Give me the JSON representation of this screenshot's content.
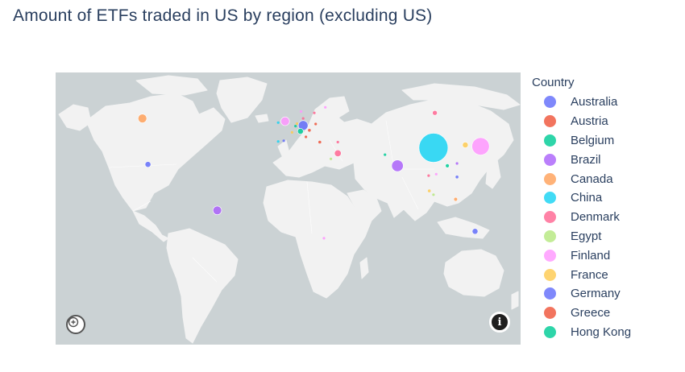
{
  "title": "Amount of ETFs traded in US by region (excluding US)",
  "legend": {
    "title": "Country",
    "items": [
      {
        "label": "Australia",
        "color": "#636efa"
      },
      {
        "label": "Austria",
        "color": "#ef553b"
      },
      {
        "label": "Belgium",
        "color": "#00cc96"
      },
      {
        "label": "Brazil",
        "color": "#ab63fa"
      },
      {
        "label": "Canada",
        "color": "#ffa15a"
      },
      {
        "label": "China",
        "color": "#19d3f3"
      },
      {
        "label": "Denmark",
        "color": "#ff6692"
      },
      {
        "label": "Egypt",
        "color": "#b6e880"
      },
      {
        "label": "Finland",
        "color": "#ff97ff"
      },
      {
        "label": "France",
        "color": "#fecb52"
      },
      {
        "label": "Germany",
        "color": "#636efa"
      },
      {
        "label": "Greece",
        "color": "#ef553b"
      },
      {
        "label": "Hong Kong",
        "color": "#00cc96"
      }
    ]
  },
  "chart_data": {
    "type": "scatter_geo",
    "projection": "natural earth",
    "legend_title": "Country",
    "points": [
      {
        "country": "Australia",
        "lon": 134,
        "lat": -25,
        "size": 6,
        "color": "#636efa"
      },
      {
        "country": "Austria",
        "lon": 14.5,
        "lat": 47.5,
        "size": 3,
        "color": "#ef553b"
      },
      {
        "country": "Belgium",
        "lon": 4.5,
        "lat": 50.5,
        "size": 2,
        "color": "#00cc96"
      },
      {
        "country": "Brazil",
        "lon": -52,
        "lat": -10,
        "size": 9,
        "color": "#ab63fa"
      },
      {
        "country": "Canada",
        "lon": -106,
        "lat": 56,
        "size": 9,
        "color": "#ffa15a"
      },
      {
        "country": "China",
        "lon": 104,
        "lat": 35,
        "size": 30,
        "color": "#19d3f3"
      },
      {
        "country": "Denmark",
        "lon": 10,
        "lat": 56,
        "size": 2,
        "color": "#ff6692"
      },
      {
        "country": "Egypt",
        "lon": 30,
        "lat": 27,
        "size": 2,
        "color": "#b6e880"
      },
      {
        "country": "Finland",
        "lon": 26,
        "lat": 64,
        "size": 2,
        "color": "#ff97ff"
      },
      {
        "country": "France",
        "lon": 2,
        "lat": 46,
        "size": 2,
        "color": "#fecb52"
      },
      {
        "country": "Germany",
        "lon": 10,
        "lat": 51,
        "size": 10,
        "color": "#636efa"
      },
      {
        "country": "Greece",
        "lon": 22,
        "lat": 39,
        "size": 3,
        "color": "#ef553b"
      },
      {
        "country": "Hong Kong",
        "lon": 114,
        "lat": 22,
        "size": 4,
        "color": "#00cc96"
      },
      {
        "country": "",
        "lon": 78,
        "lat": 22,
        "size": 12,
        "color": "#ab63fa"
      },
      {
        "country": "",
        "lon": 138,
        "lat": 36,
        "size": 18,
        "color": "#ff97ff"
      },
      {
        "country": "",
        "lon": 35,
        "lat": 31,
        "size": 7,
        "color": "#ff6692"
      },
      {
        "country": "",
        "lon": 105,
        "lat": 60,
        "size": 5,
        "color": "#ff6692"
      },
      {
        "country": "",
        "lon": -3,
        "lat": 54,
        "size": 9,
        "color": "#ff97ff"
      },
      {
        "country": "",
        "lon": -102,
        "lat": 23,
        "size": 6,
        "color": "#636efa"
      },
      {
        "country": "",
        "lon": 8,
        "lat": 46.8,
        "size": 6,
        "color": "#00cc96"
      },
      {
        "country": "",
        "lon": 127,
        "lat": 37,
        "size": 6,
        "color": "#fecb52"
      },
      {
        "country": "",
        "lon": 121,
        "lat": 14,
        "size": 3,
        "color": "#636efa"
      },
      {
        "country": "",
        "lon": 101,
        "lat": 4,
        "size": 3,
        "color": "#fecb52"
      },
      {
        "country": "",
        "lon": 120,
        "lat": -2,
        "size": 4,
        "color": "#ffa15a"
      },
      {
        "country": "",
        "lon": 25,
        "lat": -30,
        "size": 2,
        "color": "#ff97ff"
      },
      {
        "country": "",
        "lon": -8,
        "lat": 39.5,
        "size": 2,
        "color": "#19d3f3"
      },
      {
        "country": "",
        "lon": -4,
        "lat": 40,
        "size": 2,
        "color": "#636efa"
      },
      {
        "country": "",
        "lon": 19,
        "lat": 52,
        "size": 2,
        "color": "#ef553b"
      },
      {
        "country": "",
        "lon": 5.5,
        "lat": 52.3,
        "size": 2,
        "color": "#fecb52"
      },
      {
        "country": "",
        "lon": -8,
        "lat": 53,
        "size": 2,
        "color": "#19d3f3"
      },
      {
        "country": "",
        "lon": 12,
        "lat": 42.8,
        "size": 2,
        "color": "#ef553b"
      },
      {
        "country": "",
        "lon": 18,
        "lat": 60,
        "size": 2,
        "color": "#ff6692"
      },
      {
        "country": "",
        "lon": 8.5,
        "lat": 61,
        "size": 2,
        "color": "#ff97ff"
      },
      {
        "country": "",
        "lon": 35,
        "lat": 39,
        "size": 2,
        "color": "#ff6692"
      },
      {
        "country": "",
        "lon": 69,
        "lat": 30,
        "size": 2,
        "color": "#00cc96"
      },
      {
        "country": "",
        "lon": 100.5,
        "lat": 15,
        "size": 2,
        "color": "#ff6692"
      },
      {
        "country": "",
        "lon": 106,
        "lat": 16,
        "size": 2,
        "color": "#ff97ff"
      },
      {
        "country": "",
        "lon": 121,
        "lat": 23.7,
        "size": 2,
        "color": "#ab63fa"
      },
      {
        "country": "",
        "lon": 104,
        "lat": 1.3,
        "size": 2,
        "color": "#b6e880"
      }
    ]
  }
}
